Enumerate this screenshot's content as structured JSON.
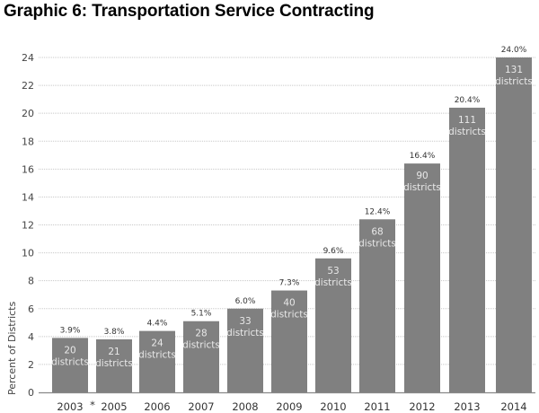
{
  "chart_data": {
    "type": "bar",
    "title": "Graphic 6: Transportation Service Contracting",
    "xlabel": "",
    "ylabel": "Percent of Districts",
    "ylim": [
      0,
      24
    ],
    "yticks": [
      0,
      2,
      4,
      6,
      8,
      10,
      12,
      14,
      16,
      18,
      20,
      22,
      24
    ],
    "grid": true,
    "categories": [
      "2003",
      "2005",
      "2006",
      "2007",
      "2008",
      "2009",
      "2010",
      "2011",
      "2012",
      "2013",
      "2014"
    ],
    "values": [
      3.9,
      3.8,
      4.4,
      5.1,
      6.0,
      7.3,
      9.6,
      12.4,
      16.4,
      20.4,
      24.0
    ],
    "data_labels": [
      "3.9%",
      "3.8%",
      "4.4%",
      "5.1%",
      "6.0%",
      "7.3%",
      "9.6%",
      "12.4%",
      "16.4%",
      "20.4%",
      "24.0%"
    ],
    "district_counts": [
      20,
      21,
      24,
      28,
      33,
      40,
      53,
      68,
      90,
      111,
      131
    ],
    "district_label": "districts",
    "annotations": [
      {
        "text": "*",
        "between": [
          "2003",
          "2005"
        ]
      }
    ],
    "bar_color": "#808080",
    "grid_color": "#c8c8c8"
  }
}
